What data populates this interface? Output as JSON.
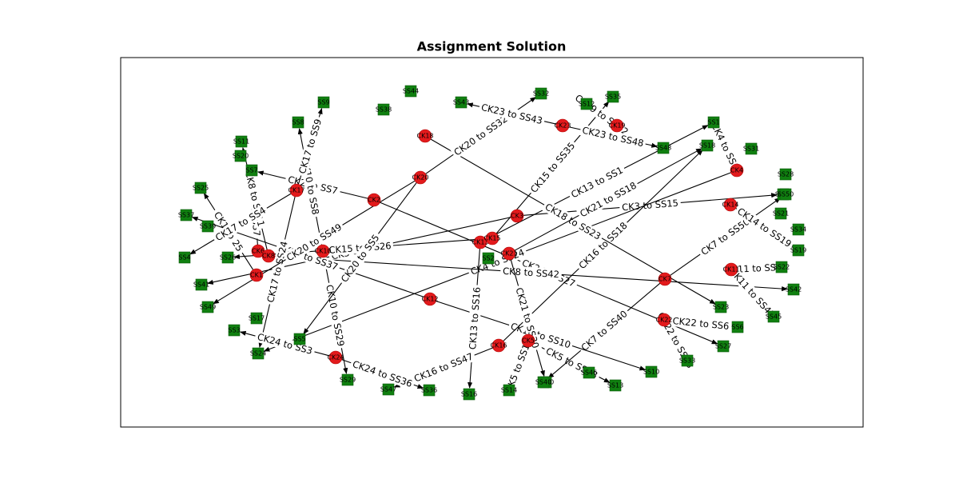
{
  "title": "Assignment Solution",
  "colors": {
    "ck": "#e31a1c",
    "ck_edge": "#b00000",
    "ss": "#108010",
    "ss_edge": "#0a5a0a",
    "edge": "#000000",
    "frame": "#000000"
  },
  "diagram": {
    "ck_nodes": [
      {
        "id": "CK1",
        "label": "CK1"
      },
      {
        "id": "CK2",
        "label": "CK2"
      },
      {
        "id": "CK3",
        "label": "CK3"
      },
      {
        "id": "CK4",
        "label": "CK4"
      },
      {
        "id": "CK5",
        "label": "CK5"
      },
      {
        "id": "CK6",
        "label": "CK6"
      },
      {
        "id": "CK7",
        "label": "CK7"
      },
      {
        "id": "CK8",
        "label": "CK8"
      },
      {
        "id": "CK10",
        "label": "CK10"
      },
      {
        "id": "CK11",
        "label": "CK11"
      },
      {
        "id": "CK12",
        "label": "CK12"
      },
      {
        "id": "CK13",
        "label": "CK13"
      },
      {
        "id": "CK14",
        "label": "CK14"
      },
      {
        "id": "CK15",
        "label": "CK15"
      },
      {
        "id": "CK16",
        "label": "CK16"
      },
      {
        "id": "CK17",
        "label": "CK17"
      },
      {
        "id": "CK18",
        "label": "CK18"
      },
      {
        "id": "CK19",
        "label": "CK19"
      },
      {
        "id": "CK20",
        "label": "CK20"
      },
      {
        "id": "CK21",
        "label": "CK21"
      },
      {
        "id": "CK22",
        "label": "CK22"
      },
      {
        "id": "CK23",
        "label": "CK23"
      },
      {
        "id": "CK24",
        "label": "CK24"
      }
    ],
    "ss_nodes": [
      {
        "id": "SS1",
        "label": "SS1"
      },
      {
        "id": "SS2",
        "label": "SS2"
      },
      {
        "id": "SS3",
        "label": "SS3"
      },
      {
        "id": "SS4",
        "label": "SS4"
      },
      {
        "id": "SS5",
        "label": "SS5"
      },
      {
        "id": "SS6",
        "label": "SS6"
      },
      {
        "id": "SS7",
        "label": "SS7"
      },
      {
        "id": "SS8",
        "label": "SS8"
      },
      {
        "id": "SS9",
        "label": "SS9"
      },
      {
        "id": "SS10",
        "label": "SS10"
      },
      {
        "id": "SS11",
        "label": "SS11"
      },
      {
        "id": "SS12",
        "label": "SS12"
      },
      {
        "id": "SS13",
        "label": "SS13"
      },
      {
        "id": "SS14",
        "label": "SS14"
      },
      {
        "id": "SS15",
        "label": "SS15"
      },
      {
        "id": "SS16",
        "label": "SS16"
      },
      {
        "id": "SS17",
        "label": "SS17"
      },
      {
        "id": "SS18",
        "label": "SS18"
      },
      {
        "id": "SS19",
        "label": "SS19"
      },
      {
        "id": "SS20",
        "label": "SS20"
      },
      {
        "id": "SS21",
        "label": "SS21"
      },
      {
        "id": "SS22",
        "label": "SS22"
      },
      {
        "id": "SS23",
        "label": "SS23"
      },
      {
        "id": "SS24",
        "label": "SS24"
      },
      {
        "id": "SS25",
        "label": "SS25"
      },
      {
        "id": "SS26",
        "label": "SS26"
      },
      {
        "id": "SS27",
        "label": "SS27"
      },
      {
        "id": "SS28",
        "label": "SS28"
      },
      {
        "id": "SS29",
        "label": "SS29"
      },
      {
        "id": "SS30",
        "label": "SS30"
      },
      {
        "id": "SS31",
        "label": "SS31"
      },
      {
        "id": "SS32",
        "label": "SS32"
      },
      {
        "id": "SS33",
        "label": "SS33"
      },
      {
        "id": "SS34",
        "label": "SS34"
      },
      {
        "id": "SS35",
        "label": "SS35"
      },
      {
        "id": "SS36",
        "label": "SS36"
      },
      {
        "id": "SS37",
        "label": "SS37"
      },
      {
        "id": "SS38",
        "label": "SS38"
      },
      {
        "id": "SS39",
        "label": "SS39"
      },
      {
        "id": "SS40",
        "label": "SS40"
      },
      {
        "id": "SS41",
        "label": "SS41"
      },
      {
        "id": "SS42",
        "label": "SS42"
      },
      {
        "id": "SS43",
        "label": "SS43"
      },
      {
        "id": "SS44",
        "label": "SS44"
      },
      {
        "id": "SS45",
        "label": "SS45"
      },
      {
        "id": "SS46",
        "label": "SS46"
      },
      {
        "id": "SS47",
        "label": "SS47"
      },
      {
        "id": "SS48",
        "label": "SS48"
      },
      {
        "id": "SS49",
        "label": "SS49"
      },
      {
        "id": "SS50",
        "label": "SS50"
      }
    ],
    "edges": [
      {
        "from": "CK1",
        "to": "SS25",
        "label": "CK1 to 25"
      },
      {
        "from": "CK2",
        "to": "SS7",
        "label": "CK2 to SS7"
      },
      {
        "from": "CK2",
        "to": "SS27",
        "label": "CK2 to SS27"
      },
      {
        "from": "CK3",
        "to": "SS15",
        "label": "CK3 to SS15"
      },
      {
        "from": "CK3",
        "to": "SS41",
        "label": "CK3 to SS41"
      },
      {
        "from": "CK4",
        "to": "SS1",
        "label": "CK4 to SS1"
      },
      {
        "from": "CK4",
        "to": "SS24",
        "label": "CK4 to SS24"
      },
      {
        "from": "CK5",
        "to": "SS13",
        "label": "CK5 to SS13"
      },
      {
        "from": "CK5",
        "to": "SS14",
        "label": "CK5 to SS14"
      },
      {
        "from": "CK6",
        "to": "SS7",
        "label": "CK6 to SS7"
      },
      {
        "from": "CK7",
        "to": "SS40",
        "label": "CK7 to SS40"
      },
      {
        "from": "CK7",
        "to": "SS50",
        "label": "CK7 to SS50"
      },
      {
        "from": "CK8",
        "to": "SS11",
        "label": "CK8 to SS11"
      },
      {
        "from": "CK8",
        "to": "SS42",
        "label": "CK8 to SS42"
      },
      {
        "from": "CK10",
        "to": "SS8",
        "label": "CK10 to SS8"
      },
      {
        "from": "CK10",
        "to": "SS29",
        "label": "CK10 to SS29"
      },
      {
        "from": "CK11",
        "to": "SS22",
        "label": "CK11 to SS22"
      },
      {
        "from": "CK11",
        "to": "SS45",
        "label": "CK11 to SS45"
      },
      {
        "from": "CK12",
        "to": "SS10",
        "label": "CK12 to SS10"
      },
      {
        "from": "CK12",
        "to": "SS37",
        "label": "CK12 to SS37"
      },
      {
        "from": "CK13",
        "to": "SS1",
        "label": "CK13 to SS1"
      },
      {
        "from": "CK13",
        "to": "SS16",
        "label": "CK13 to SS16"
      },
      {
        "from": "CK14",
        "to": "SS19",
        "label": "CK14 to SS19"
      },
      {
        "from": "CK15",
        "to": "SS26",
        "label": "CK15 to SS26"
      },
      {
        "from": "CK15",
        "to": "SS35",
        "label": "CK15 to SS35"
      },
      {
        "from": "CK16",
        "to": "SS18",
        "label": "CK16 to SS18"
      },
      {
        "from": "CK16",
        "to": "SS47",
        "label": "CK16 to SS47"
      },
      {
        "from": "CK17",
        "to": "SS4",
        "label": "CK17 to SS4"
      },
      {
        "from": "CK17",
        "to": "SS9",
        "label": "CK17 to SS9"
      },
      {
        "from": "CK17",
        "to": "SS24",
        "label": "CK17 to SS24"
      },
      {
        "from": "CK18",
        "to": "SS23",
        "label": "CK18 to SS23"
      },
      {
        "from": "CK19",
        "to": "SS12",
        "label": "CK19 to SS12"
      },
      {
        "from": "CK20",
        "to": "SS32",
        "label": "CK20 to SS32"
      },
      {
        "from": "CK20",
        "to": "SS49",
        "label": "CK20 to SS49"
      },
      {
        "from": "CK20",
        "to": "SS5",
        "label": "CK20 to SS5"
      },
      {
        "from": "CK21",
        "to": "SS18",
        "label": "CK21 to SS18"
      },
      {
        "from": "CK21",
        "to": "SS30",
        "label": "CK21 to SS30"
      },
      {
        "from": "CK22",
        "to": "SS6",
        "label": "CK22 to SS6"
      },
      {
        "from": "CK22",
        "to": "SS33",
        "label": "CK22 to SS33"
      },
      {
        "from": "CK23",
        "to": "SS43",
        "label": "CK23 to SS43"
      },
      {
        "from": "CK23",
        "to": "SS48",
        "label": "CK23 to SS48"
      },
      {
        "from": "CK24",
        "to": "SS3",
        "label": "CK24 to SS3"
      },
      {
        "from": "CK24",
        "to": "SS36",
        "label": "CK24 to SS36"
      }
    ]
  }
}
